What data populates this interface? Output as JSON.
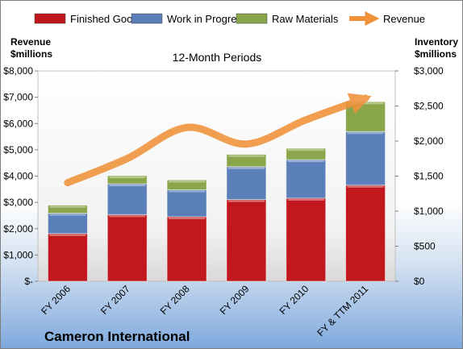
{
  "chart_data": {
    "type": "bar",
    "stacked": true,
    "title": "12-Month Periods",
    "subtitle": "Cameron International",
    "categories": [
      "FY 2006",
      "FY 2007",
      "FY 2008",
      "FY 2009",
      "FY 2010",
      "FY & TTM 2011"
    ],
    "series": [
      {
        "name": "Finished Goods",
        "axis": "right",
        "color": "#c0181c",
        "values": [
          680,
          950,
          920,
          1165,
          1185,
          1370
        ]
      },
      {
        "name": "Work in Progress",
        "axis": "right",
        "color": "#5b7fb8",
        "values": [
          290,
          440,
          385,
          470,
          550,
          765
        ]
      },
      {
        "name": "Raw Materials",
        "axis": "right",
        "color": "#8aa64a",
        "values": [
          115,
          115,
          140,
          175,
          160,
          425
        ]
      }
    ],
    "line_series": {
      "name": "Revenue",
      "axis": "left",
      "color": "#f0923a",
      "values": [
        3750,
        4670,
        5850,
        5220,
        6140,
        6960
      ]
    },
    "left_axis": {
      "label_line1": "Revenue",
      "label_line2": "$millions",
      "ylim": [
        0,
        8000
      ],
      "ticks": [
        "$-",
        "$1,000",
        "$2,000",
        "$3,000",
        "$4,000",
        "$5,000",
        "$6,000",
        "$7,000",
        "$8,000"
      ]
    },
    "right_axis": {
      "label_line1": "Inventory",
      "label_line2": "$millions",
      "ylim": [
        0,
        3000
      ],
      "ticks": [
        "$0",
        "$500",
        "$1,000",
        "$1,500",
        "$2,000",
        "$2,500",
        "$3,000"
      ]
    },
    "legend": {
      "position": "top"
    },
    "grid": false
  }
}
